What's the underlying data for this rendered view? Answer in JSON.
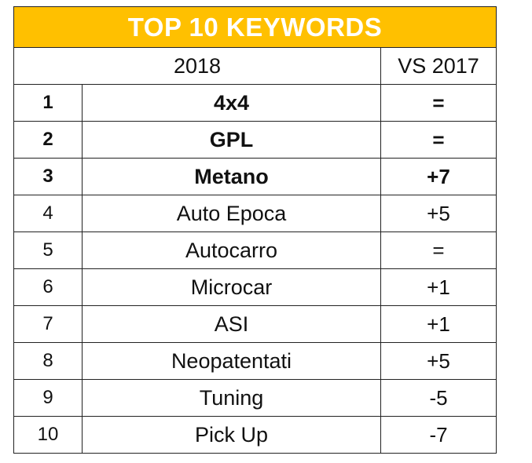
{
  "title": "TOP 10 KEYWORDS",
  "header": {
    "year": "2018",
    "comparison": "VS 2017"
  },
  "rows": [
    {
      "rank": "1",
      "keyword": "4x4",
      "change": "=",
      "bold": true
    },
    {
      "rank": "2",
      "keyword": "GPL",
      "change": "=",
      "bold": true
    },
    {
      "rank": "3",
      "keyword": "Metano",
      "change": "+7",
      "bold": true
    },
    {
      "rank": "4",
      "keyword": "Auto Epoca",
      "change": "+5",
      "bold": false
    },
    {
      "rank": "5",
      "keyword": "Autocarro",
      "change": "=",
      "bold": false
    },
    {
      "rank": "6",
      "keyword": "Microcar",
      "change": "+1",
      "bold": false
    },
    {
      "rank": "7",
      "keyword": "ASI",
      "change": "+1",
      "bold": false
    },
    {
      "rank": "8",
      "keyword": "Neopatentati",
      "change": "+5",
      "bold": false
    },
    {
      "rank": "9",
      "keyword": "Tuning",
      "change": "-5",
      "bold": false
    },
    {
      "rank": "10",
      "keyword": "Pick Up",
      "change": "-7",
      "bold": false
    }
  ],
  "colors": {
    "title_background": "#FFC000",
    "title_text": "#FFFFFF",
    "border": "#222222"
  }
}
